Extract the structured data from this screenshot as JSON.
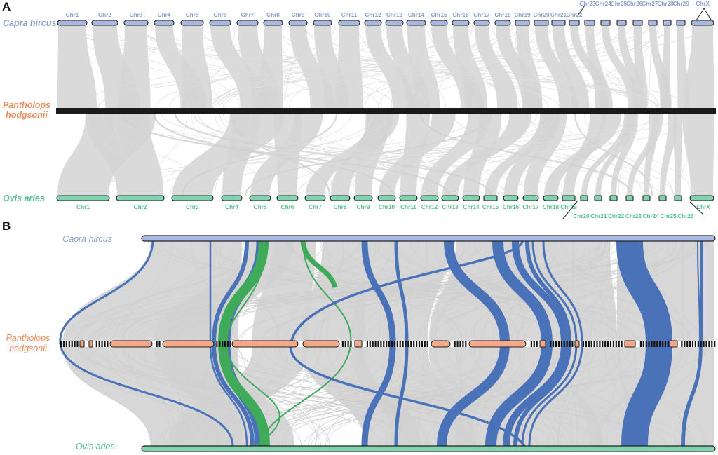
{
  "panel_a": {
    "letter": "A",
    "species": {
      "top": "Capra hircus",
      "middle_line1": "Pantholops",
      "middle_line2": "hodgsonii",
      "bottom": "Ovis aries"
    },
    "capra_chromosomes": [
      "Chr1",
      "Chr2",
      "Chr3",
      "Chr4",
      "Chr5",
      "Chr6",
      "Chr7",
      "Chr8",
      "Chr9",
      "Chr10",
      "Chr11",
      "Chr12",
      "Chr13",
      "Chr14",
      "Chr15",
      "Chr16",
      "Chr17",
      "Chr18",
      "Chr19",
      "Chr20",
      "Chr21",
      "Chr22",
      "Chr23",
      "Chr24",
      "Chr25",
      "Chr26",
      "Chr27",
      "Chr28",
      "Chr29",
      "ChrX"
    ],
    "ovis_chromosomes": [
      "Chr1",
      "Chr2",
      "Chr3",
      "Chr4",
      "Chr5",
      "Chr6",
      "Chr7",
      "Chr8",
      "Chr9",
      "Chr10",
      "Chr11",
      "Chr12",
      "Chr13",
      "Chr14",
      "Chr15",
      "Chr16",
      "Chr17",
      "Chr18",
      "Chr19",
      "Chr20",
      "Chr21",
      "Chr22",
      "Chr23",
      "Chr24",
      "Chr25",
      "Chr26",
      "ChrX"
    ]
  },
  "panel_b": {
    "letter": "B",
    "species": {
      "top": "Capra hircus",
      "middle_line1": "Pantholops",
      "middle_line2": "hodgsonii",
      "bottom": "Ovis aries"
    }
  },
  "colors": {
    "capra": "#8da0cb",
    "capra_fill": "#a9b8e0",
    "pantholops": "#f08c5a",
    "pantholops_fill": "#f4a98a",
    "ovis": "#5bbf95",
    "ovis_fill": "#7fd3ad",
    "synteny_gray": "#d3d3d3",
    "highlight_blue": "#4a72b8",
    "highlight_green": "#3faa5a"
  }
}
